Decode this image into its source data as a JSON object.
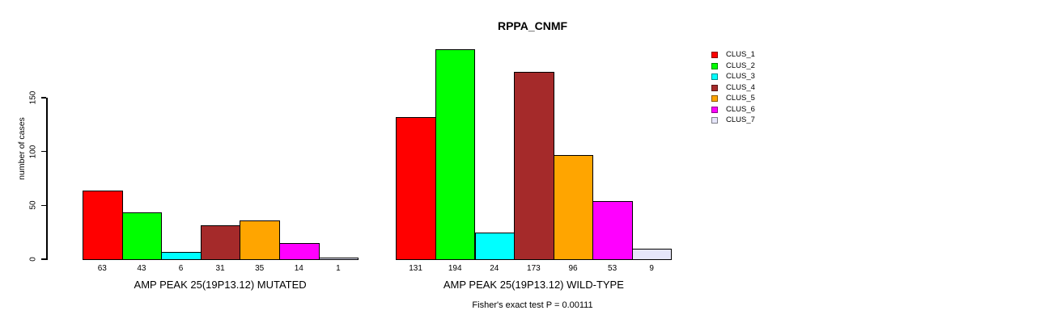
{
  "chart_data": {
    "type": "bar",
    "title": "RPPA_CNMF",
    "ylabel": "number of cases",
    "xlabel": "",
    "yticks": [
      0,
      50,
      100,
      150
    ],
    "ylim": [
      0,
      200
    ],
    "grid": false,
    "axis_color": "#000000",
    "legend_position": "right-outside",
    "categories": [
      "AMP PEAK 25(19P13.12) MUTATED",
      "AMP PEAK 25(19P13.12) WILD-TYPE"
    ],
    "series": [
      {
        "name": "CLUS_1",
        "color": "#ff0000",
        "values": [
          63,
          131
        ]
      },
      {
        "name": "CLUS_2",
        "color": "#00ff00",
        "values": [
          43,
          194
        ]
      },
      {
        "name": "CLUS_3",
        "color": "#00ffff",
        "values": [
          6,
          24
        ]
      },
      {
        "name": "CLUS_4",
        "color": "#a52a2a",
        "values": [
          31,
          173
        ]
      },
      {
        "name": "CLUS_5",
        "color": "#ffa500",
        "values": [
          35,
          96
        ]
      },
      {
        "name": "CLUS_6",
        "color": "#ff00ff",
        "values": [
          14,
          53
        ]
      },
      {
        "name": "CLUS_7",
        "color": "#e6e6fa",
        "values": [
          1,
          9
        ]
      }
    ],
    "bar_value_labels_shown": true,
    "annotation": "Fisher's exact test P = 0.00111"
  }
}
